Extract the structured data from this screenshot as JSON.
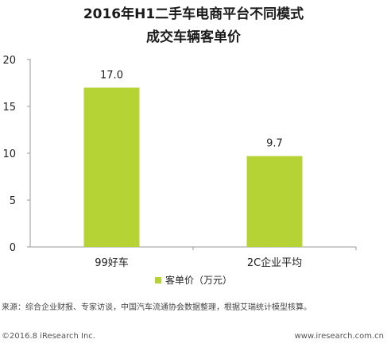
{
  "chart_data": {
    "type": "bar",
    "title": "2016年H1二手车电商平台不同模式",
    "subtitle": "成交车辆客单价",
    "categories": [
      "99好车",
      "2C企业平均"
    ],
    "series": [
      {
        "name": "客单价（万元）",
        "values": [
          17.0,
          9.7
        ],
        "labels": [
          "17.0",
          "9.7"
        ]
      }
    ],
    "ylim": [
      0,
      20
    ],
    "yticks": [
      "0",
      "5",
      "10",
      "15",
      "20"
    ],
    "grid": false,
    "legend": "bottom",
    "bar_color": "#b5d334"
  },
  "source": "来源：综合企业财报、专家访谈，中国汽车流通协会数据整理，根据艾瑞统计模型核算。",
  "footer": {
    "left": "©2016.8 iResearch Inc.",
    "right": "www.iresearch.com.cn"
  }
}
